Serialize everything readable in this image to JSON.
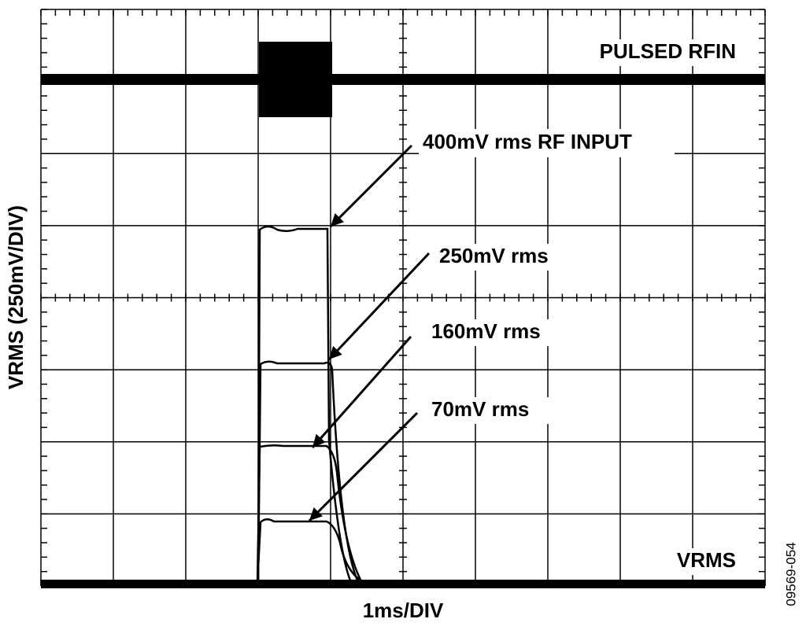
{
  "figure": {
    "y_axis_label": "VRMS (250mV/DIV)",
    "x_axis_label": "1ms/DIV",
    "figure_id": "09569-054",
    "trace_labels": {
      "top": "PULSED RFIN",
      "bottom": "VRMS"
    },
    "annotations": [
      "400mV rms RF INPUT",
      "250mV rms",
      "160mV rms",
      "70mV rms"
    ]
  }
}
